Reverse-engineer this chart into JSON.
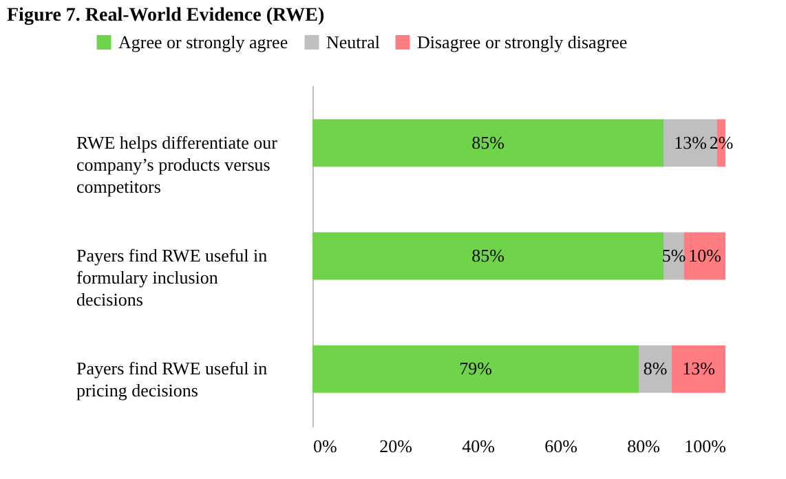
{
  "chart_data": {
    "type": "bar",
    "orientation": "horizontal",
    "stacked": true,
    "title": "Figure 7. Real-World Evidence (RWE)",
    "categories": [
      "RWE helps differentiate our company’s products versus competitors",
      "Payers find RWE useful in formulary inclusion decisions",
      "Payers find RWE useful in pricing decisions"
    ],
    "series": [
      {
        "name": "Agree or strongly agree",
        "color": "#70d44b",
        "values": [
          85,
          85,
          79
        ],
        "value_labels": [
          "85%",
          "85%",
          "79%"
        ]
      },
      {
        "name": "Neutral",
        "color": "#bfbfbf",
        "values": [
          13,
          5,
          8
        ],
        "value_labels": [
          "13%",
          "5%",
          "8%"
        ]
      },
      {
        "name": "Disagree or strongly disagree",
        "color": "#ff7c80",
        "values": [
          2,
          10,
          13
        ],
        "value_labels": [
          "2%",
          "10%",
          "13%"
        ]
      }
    ],
    "xlim": [
      0,
      100
    ],
    "xticks": [
      {
        "value": 0,
        "label": "0%"
      },
      {
        "value": 20,
        "label": "20%"
      },
      {
        "value": 40,
        "label": "40%"
      },
      {
        "value": 60,
        "label": "60%"
      },
      {
        "value": 80,
        "label": "80%"
      },
      {
        "value": 100,
        "label": "100%"
      }
    ],
    "legend": "top",
    "grid": false
  }
}
